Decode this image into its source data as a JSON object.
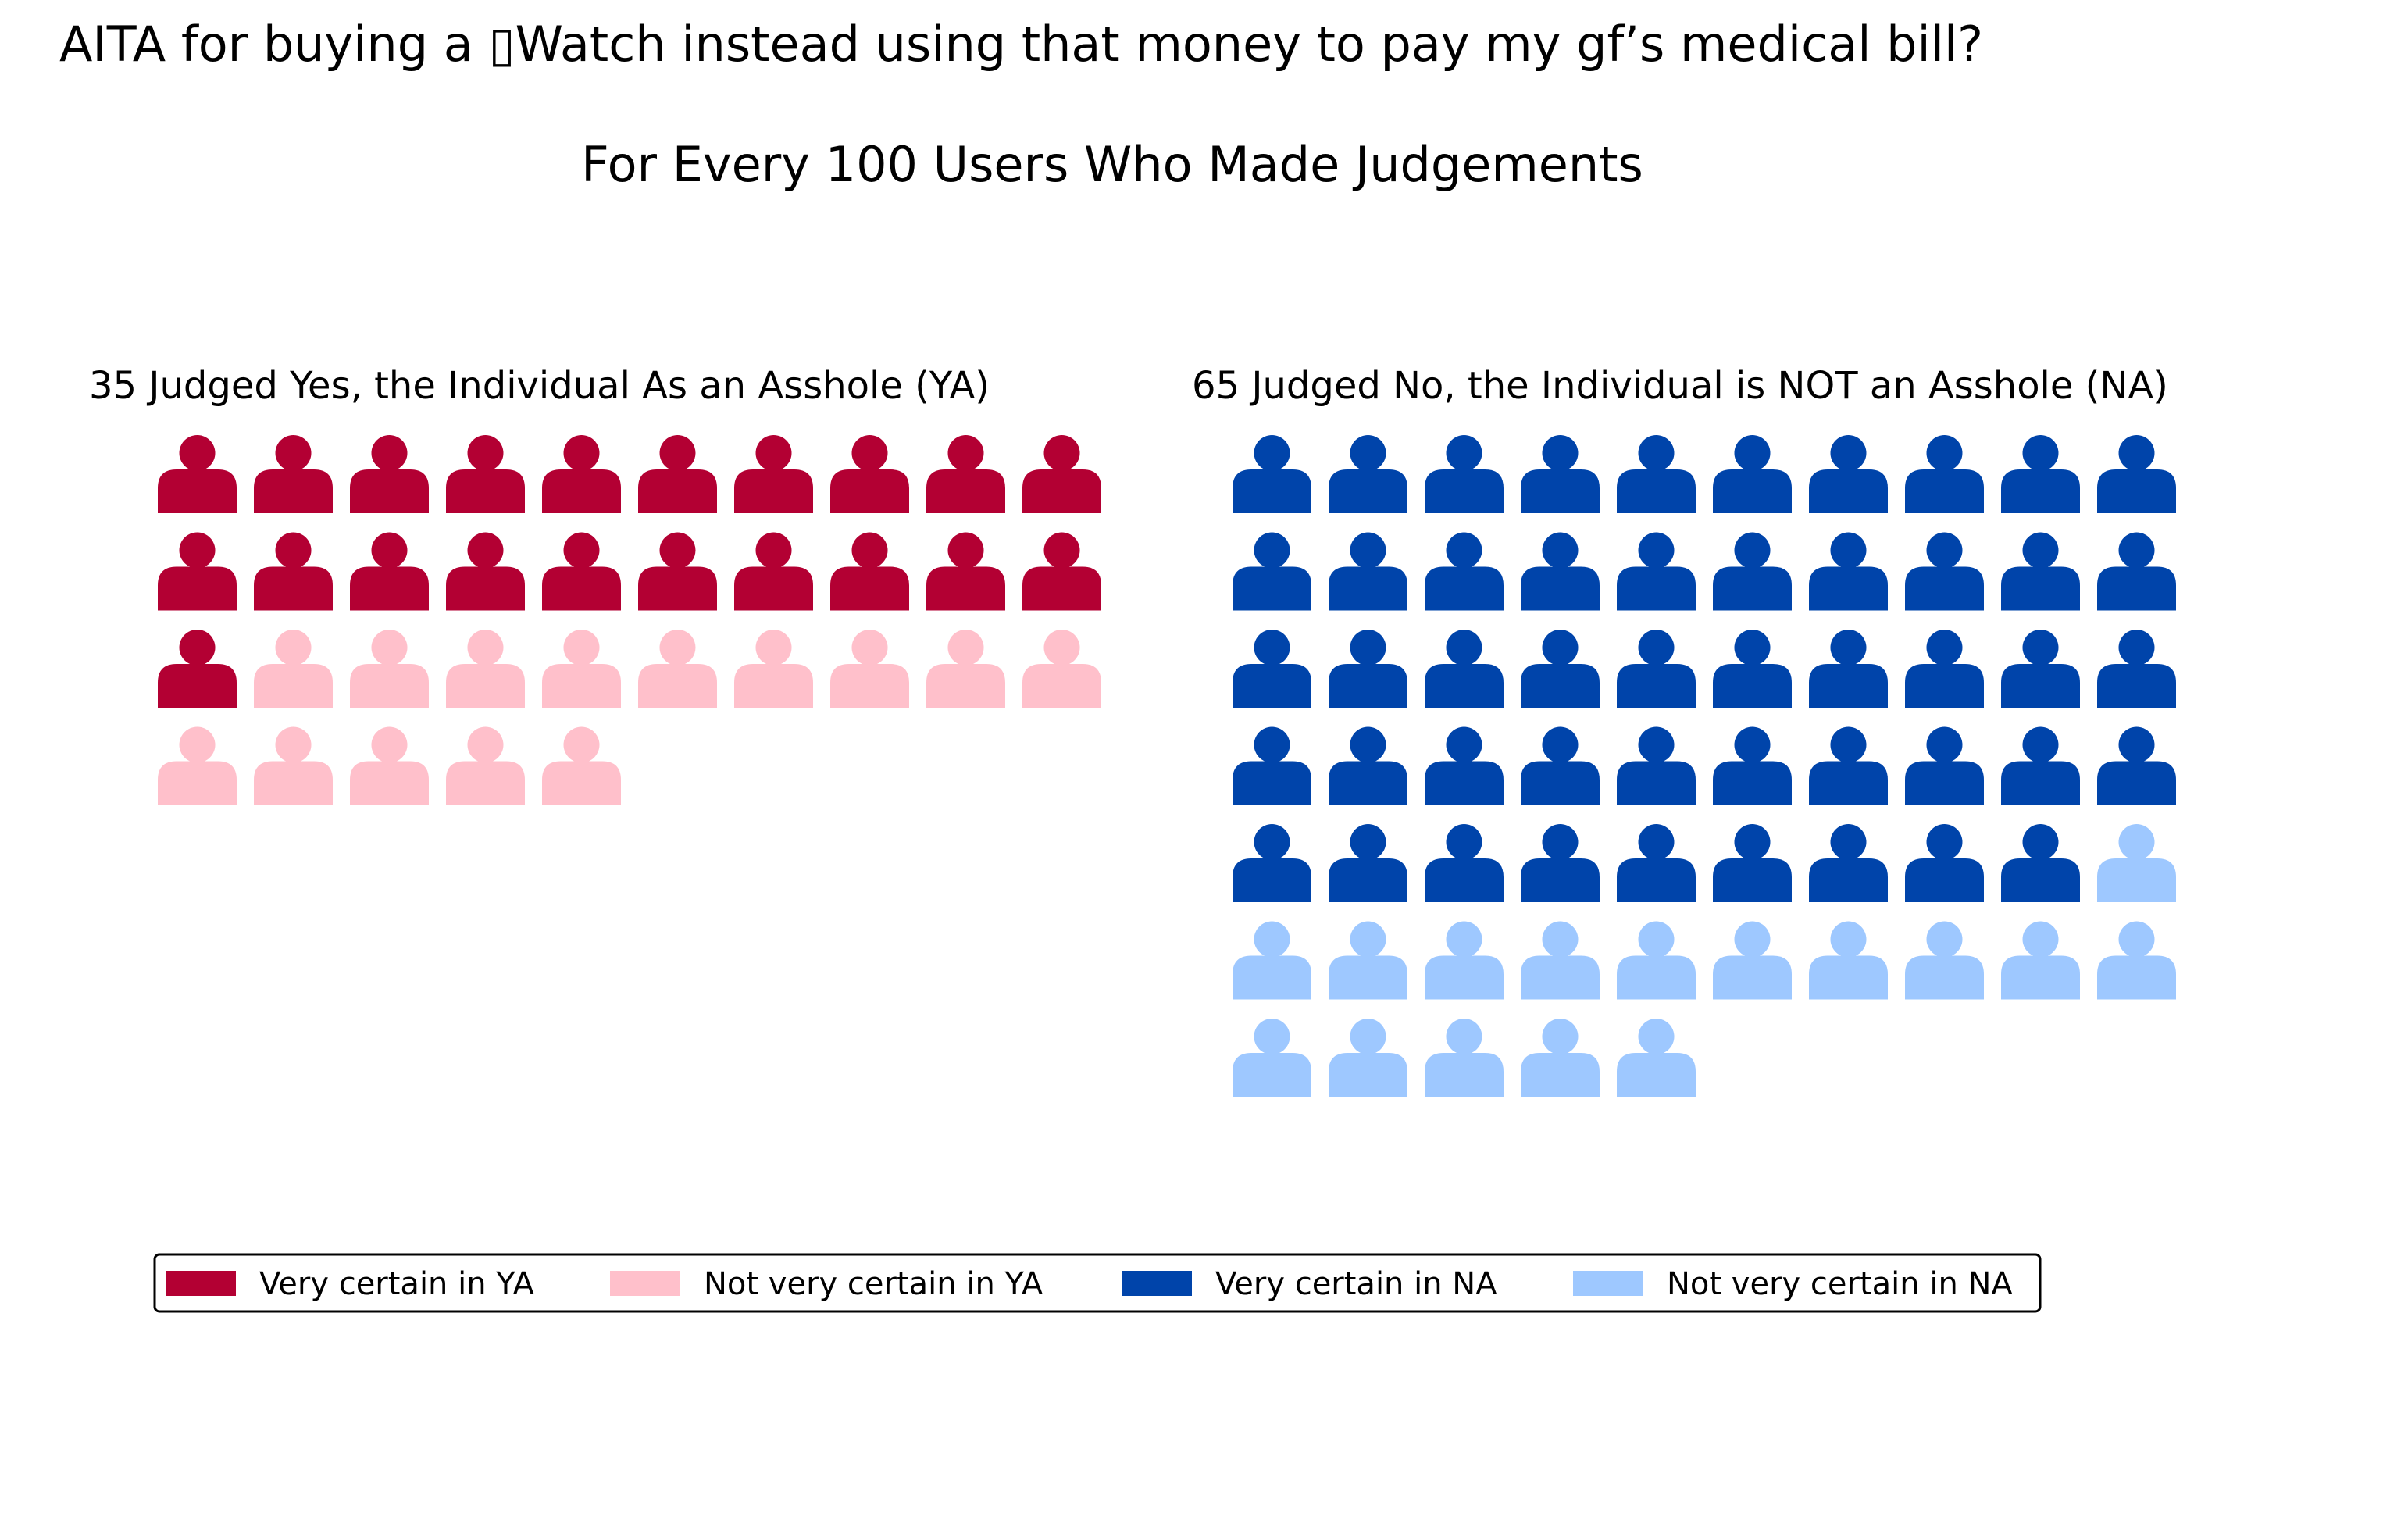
{
  "chart_data": {
    "type": "pictogram",
    "title": "AITA for buying a ▯Watch instead using that money to pay my gf’s medical bill?",
    "subtitle": "For Every 100 Users Who Made Judgements",
    "icon": "person-icon",
    "grid_columns": 10,
    "groups": [
      {
        "key": "ya",
        "label": "35 Judged Yes, the Individual As an Asshole (YA)",
        "total": 35,
        "segments": [
          {
            "name": "Very certain in YA",
            "count": 21,
            "color": "#b30033"
          },
          {
            "name": "Not very certain in YA",
            "count": 14,
            "color": "#ffc0cb"
          }
        ]
      },
      {
        "key": "na",
        "label": "65 Judged No, the Individual is NOT an Asshole (NA)",
        "total": 65,
        "segments": [
          {
            "name": "Very certain in NA",
            "count": 49,
            "color": "#0044aa"
          },
          {
            "name": "Not very certain in NA",
            "count": 16,
            "color": "#9ec8ff"
          }
        ]
      }
    ],
    "legend": {
      "placement": "bottom",
      "entries": [
        {
          "label": "Very certain in YA",
          "color": "#b30033"
        },
        {
          "label": "Not very certain in YA",
          "color": "#ffc0cb"
        },
        {
          "label": "Very certain in NA",
          "color": "#0044aa"
        },
        {
          "label": "Not very certain in NA",
          "color": "#9ec8ff"
        }
      ]
    }
  }
}
